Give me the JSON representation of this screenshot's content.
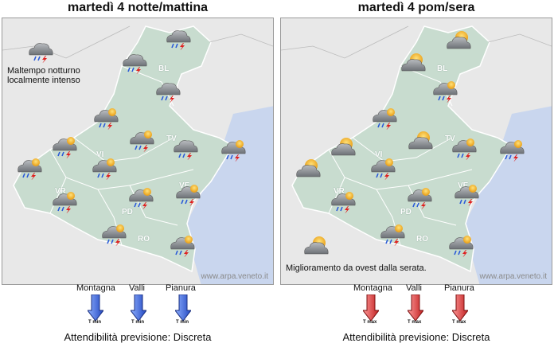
{
  "left": {
    "title": "martedì  4 notte/mattina",
    "note": "Maltempo notturno\nlocalmente intenso",
    "watermark": "www.arpa.veneto.it",
    "provinces": [
      "BL",
      "VI",
      "TV",
      "VR",
      "PD",
      "VE",
      "RO"
    ],
    "legend": [
      "Montagna",
      "Valli",
      "Pianura"
    ],
    "arrow_label": "T min",
    "arrow_color": "#3a5fd0",
    "reliability": "Attendibilità previsione: Discreta"
  },
  "right": {
    "title": "martedì  4 pom/sera",
    "note": "Miglioramento da ovest dalla serata.",
    "watermark": "www.arpa.veneto.it",
    "provinces": [
      "BL",
      "VI",
      "TV",
      "VR",
      "PD",
      "VE",
      "RO"
    ],
    "legend": [
      "Montagna",
      "Valli",
      "Pianura"
    ],
    "arrow_label": "T max",
    "arrow_color": "#d23b3b",
    "reliability": "Attendibilità previsione: Discreta"
  },
  "icons": {
    "storm": "cloud-rain-lightning-icon",
    "sun_storm": "sun-cloud-rain-lightning-icon",
    "sun_cloud": "sun-cloud-icon",
    "sun_rain": "sun-cloud-rain-icon",
    "sea": "#c9d6ee",
    "region": "#c8dccf"
  }
}
